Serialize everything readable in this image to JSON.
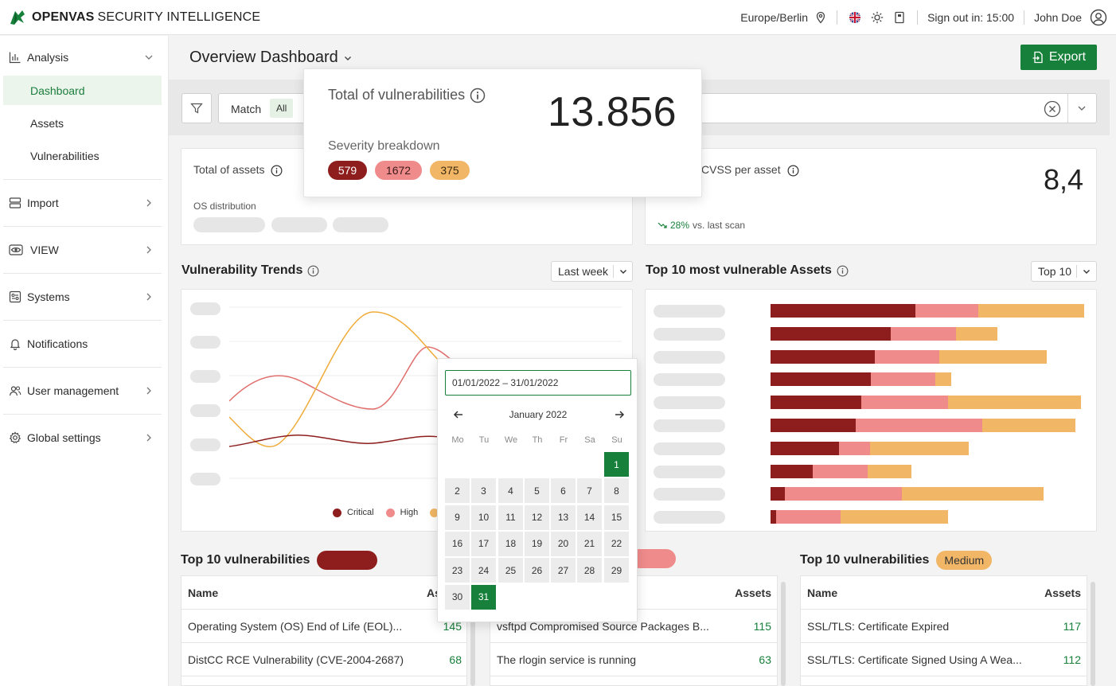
{
  "header": {
    "brand_bold": "OPENVAS",
    "brand_rest": "SECURITY INTELLIGENCE",
    "timezone": "Europe/Berlin",
    "signout": "Sign out in: 15:00",
    "user": "John Doe",
    "icons": [
      "location-pin-icon",
      "uk-flag-icon",
      "sun-icon",
      "book-icon",
      "user-circle-icon"
    ]
  },
  "sidebar": {
    "analysis": "Analysis",
    "sub": [
      "Dashboard",
      "Assets",
      "Vulnerabilities"
    ],
    "items": [
      "Import",
      "VIEW",
      "Systems",
      "Notifications",
      "User management",
      "Global settings"
    ]
  },
  "main": {
    "title": "Overview Dashboard",
    "export": "Export",
    "filter": {
      "match_label": "Match",
      "match_value": "All"
    }
  },
  "popover": {
    "title": "Total of vulnerabilities",
    "total": "13.856",
    "sub": "Severity breakdown",
    "severity": {
      "critical": "579",
      "high": "1672",
      "medium": "375"
    }
  },
  "cards": {
    "assets_title": "Total of assets",
    "os_distribution": "OS distribution",
    "cvss_title": "CVSS per asset",
    "cvss_value": "8,4",
    "cvss_trend": "28%",
    "cvss_trend_suffix": "vs. last scan"
  },
  "trends": {
    "title": "Vulnerability Trends",
    "range": "Last week",
    "legend": [
      "Critical",
      "High"
    ]
  },
  "top_assets": {
    "title": "Top 10 most vulnerable Assets",
    "selector": "Top 10"
  },
  "calendar": {
    "range": "01/01/2022 – 31/01/2022",
    "month": "January 2022",
    "dow": [
      "Mo",
      "Tu",
      "We",
      "Th",
      "Fr",
      "Sa",
      "Su"
    ],
    "days": [
      "1",
      "2",
      "3",
      "4",
      "5",
      "6",
      "7",
      "8",
      "9",
      "10",
      "11",
      "12",
      "13",
      "14",
      "15",
      "16",
      "17",
      "18",
      "19",
      "20",
      "21",
      "22",
      "23",
      "24",
      "25",
      "26",
      "27",
      "28",
      "29",
      "30",
      "31"
    ]
  },
  "tables": {
    "t1": {
      "title": "Top 10 vulnerabilities",
      "col_name": "Name",
      "col_assets": "As",
      "rows": [
        {
          "name": "Operating System (OS) End of Life (EOL)...",
          "assets": "145"
        },
        {
          "name": "DistCC RCE Vulnerability (CVE-2004-2687)",
          "assets": "68"
        }
      ]
    },
    "t2": {
      "col_assets": "Assets",
      "rows": [
        {
          "name": "vsftpd Compromised Source Packages B...",
          "assets": "115"
        },
        {
          "name": "The rlogin service is running",
          "assets": "63"
        }
      ]
    },
    "t3": {
      "title": "Top 10 vulnerabilities",
      "badge": "Medium",
      "col_name": "Name",
      "col_assets": "Assets",
      "rows": [
        {
          "name": "SSL/TLS: Certificate Expired",
          "assets": "117"
        },
        {
          "name": "SSL/TLS: Certificate Signed Using A Wea...",
          "assets": "112"
        }
      ]
    }
  },
  "chart_data": [
    {
      "type": "line",
      "title": "Vulnerability Trends",
      "series": [
        {
          "name": "Critical",
          "values": [
            1.0,
            1.2,
            1.1,
            1.0,
            1.1
          ]
        },
        {
          "name": "High",
          "values": [
            2.6,
            3.2,
            2.2,
            2.8,
            2.4
          ]
        }
      ]
    },
    {
      "type": "bar",
      "title": "Top 10 most vulnerable Assets",
      "stacked": true,
      "series": [
        {
          "name": "Critical",
          "values": [
            182,
            151,
            131,
            126,
            114,
            107,
            86,
            53,
            18,
            7
          ]
        },
        {
          "name": "High",
          "values": [
            79,
            82,
            81,
            81,
            109,
            159,
            39,
            69,
            147,
            81
          ]
        },
        {
          "name": "Medium",
          "values": [
            133,
            52,
            135,
            20,
            167,
            117,
            124,
            55,
            178,
            135
          ]
        }
      ],
      "colors": {
        "Critical": "#8e1e1e",
        "High": "#f08b8b",
        "Medium": "#f2b766"
      }
    }
  ]
}
